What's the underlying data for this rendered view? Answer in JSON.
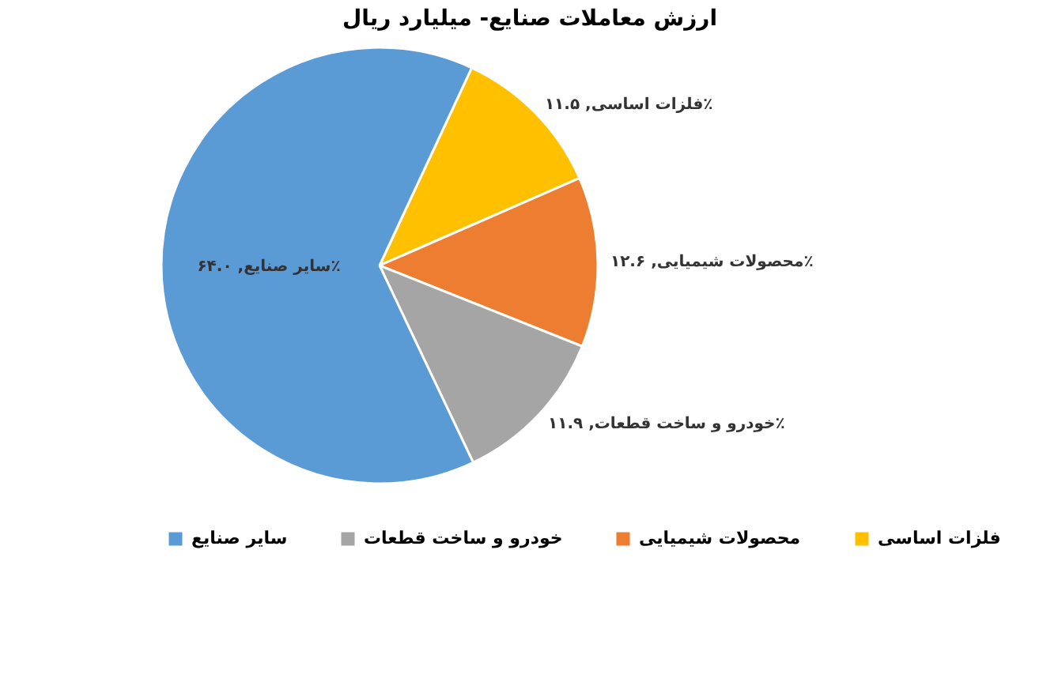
{
  "chart_data": {
    "type": "pie",
    "title": "ارزش معاملات صنایع- میلیارد ریال",
    "categories": [
      "فلزات اساسی",
      "محصولات شیمیایی",
      "خودرو و ساخت قطعات",
      "سایر صنایع"
    ],
    "values": [
      11.5,
      12.6,
      11.9,
      64.0
    ],
    "colors": [
      "#ffc000",
      "#ed7d31",
      "#a5a5a5",
      "#5b9bd5"
    ],
    "value_labels": [
      "فلزات اساسی, ۱۱.۵٪",
      "محصولات شیمیایی, ۱۲.۶٪",
      "خودرو و ساخت قطعات, ۱۱.۹٪",
      "سایر صنایع, ۶۴.۰٪"
    ],
    "legend": "bottom"
  }
}
